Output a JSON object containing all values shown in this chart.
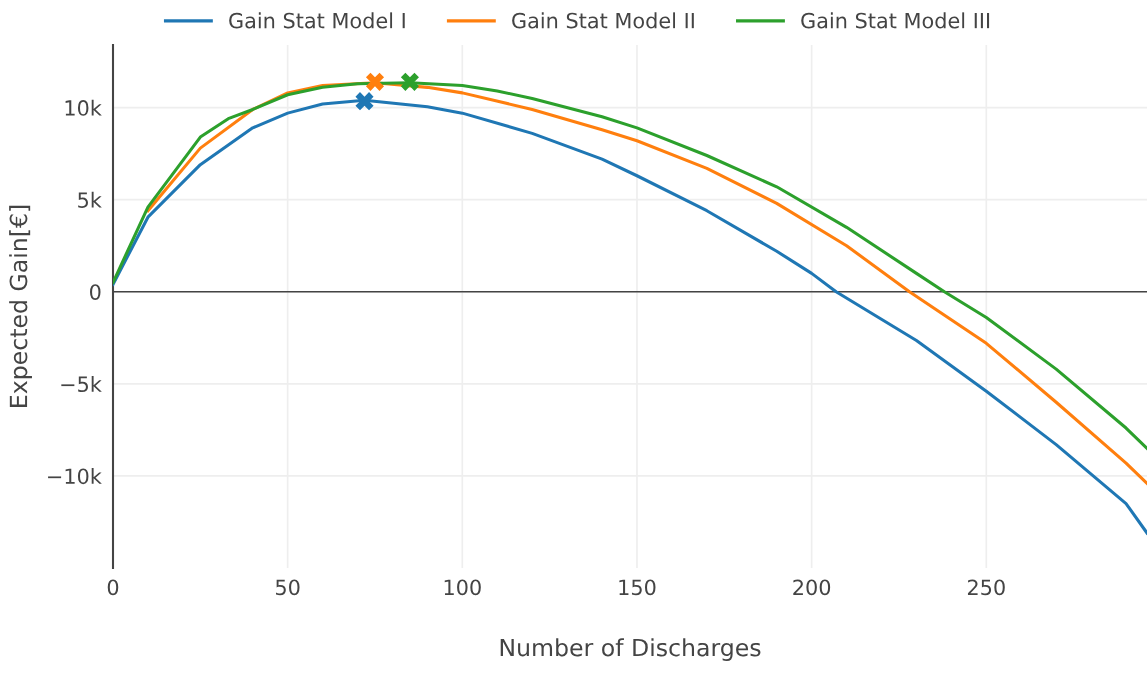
{
  "chart_data": {
    "type": "line",
    "xlabel": "Number of Discharges",
    "ylabel": "Expected Gain[€]",
    "xlim": [
      0,
      296
    ],
    "ylim": [
      -15000,
      13400
    ],
    "xticks": [
      0,
      50,
      100,
      150,
      200,
      250
    ],
    "yticks": [
      {
        "value": -10000,
        "label": "−10k"
      },
      {
        "value": -5000,
        "label": "−5k"
      },
      {
        "value": 0,
        "label": "0"
      },
      {
        "value": 5000,
        "label": "5k"
      },
      {
        "value": 10000,
        "label": "10k"
      }
    ],
    "grid": true,
    "legend": "top",
    "marker": "none",
    "line_style": "solid",
    "ref_lines": [
      {
        "axis": "y",
        "value": 0,
        "color": "#444444"
      }
    ],
    "series": [
      {
        "name": "Gain Stat Model I",
        "color": "#1f77b4",
        "x": [
          0,
          10,
          25,
          40,
          50,
          60,
          72,
          90,
          100,
          120,
          140,
          150,
          170,
          190,
          200,
          207,
          230,
          250,
          270,
          290,
          296
        ],
        "values": [
          400,
          4050,
          6900,
          8900,
          9700,
          10200,
          10400,
          10050,
          9700,
          8600,
          7200,
          6300,
          4400,
          2200,
          1000,
          0,
          -2650,
          -5400,
          -8300,
          -11500,
          -13100
        ]
      },
      {
        "name": "Gain Stat Model II",
        "color": "#ff7f0e",
        "x": [
          10,
          25,
          40,
          50,
          60,
          75,
          90,
          100,
          120,
          140,
          150,
          170,
          190,
          210,
          228,
          250,
          270,
          290,
          296
        ],
        "values": [
          4400,
          7800,
          9900,
          10800,
          11200,
          11350,
          11100,
          10800,
          9900,
          8800,
          8200,
          6700,
          4800,
          2500,
          0,
          -2800,
          -6000,
          -9300,
          -10400
        ]
      },
      {
        "name": "Gain Stat Model III",
        "color": "#2ca02c",
        "x": [
          0,
          10,
          25,
          33,
          40,
          50,
          60,
          70,
          85,
          100,
          110,
          120,
          140,
          150,
          170,
          190,
          210,
          230,
          238,
          250,
          270,
          290,
          296
        ],
        "values": [
          500,
          4600,
          8400,
          9400,
          9900,
          10700,
          11100,
          11300,
          11350,
          11200,
          10900,
          10500,
          9500,
          8900,
          7400,
          5700,
          3500,
          1000,
          0,
          -1400,
          -4200,
          -7400,
          -8500
        ]
      },
      {
        "type": "scatter",
        "marker": "cross",
        "color": "#1f77b4",
        "x": [
          72
        ],
        "values": [
          10350
        ]
      },
      {
        "type": "scatter",
        "marker": "cross",
        "color": "#ff7f0e",
        "x": [
          75
        ],
        "values": [
          11400
        ]
      },
      {
        "type": "scatter",
        "marker": "cross",
        "color": "#2ca02c",
        "x": [
          85
        ],
        "values": [
          11400
        ]
      }
    ]
  }
}
